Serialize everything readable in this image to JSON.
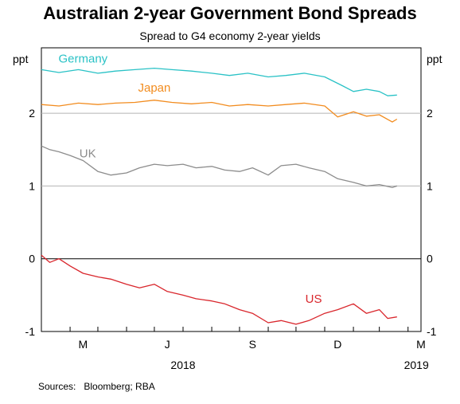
{
  "chart_data": {
    "type": "line",
    "title": "Australian 2-year Government Bond Spreads",
    "subtitle": "Spread to G4 economy 2-year yields",
    "yunit_left": "ppt",
    "yunit_right": "ppt",
    "ylim": [
      -1,
      2.9
    ],
    "yticks": [
      {
        "value": 2,
        "label": "2"
      },
      {
        "value": 1,
        "label": "1"
      },
      {
        "value": 0,
        "label": "0"
      },
      {
        "value": -1,
        "label": "-1"
      }
    ],
    "grid": true,
    "x_range": [
      "2018-03-01",
      "2019-04-15"
    ],
    "month_ticks": [
      "2018-04-01",
      "2018-05-01",
      "2018-06-01",
      "2018-07-01",
      "2018-08-01",
      "2018-09-01",
      "2018-10-01",
      "2018-11-01",
      "2018-12-01",
      "2019-01-01",
      "2019-02-01",
      "2019-03-01",
      "2019-04-01"
    ],
    "month_labels": [
      {
        "date": "2018-04-15",
        "label": "M"
      },
      {
        "date": "2018-07-15",
        "label": "J"
      },
      {
        "date": "2018-10-15",
        "label": "S"
      },
      {
        "date": "2019-01-15",
        "label": "D"
      },
      {
        "date": "2019-04-15",
        "label": "M"
      }
    ],
    "year_labels": [
      {
        "date": "2018-08-01",
        "label": "2018"
      },
      {
        "date": "2019-04-10",
        "label": "2019"
      }
    ],
    "series": [
      {
        "name": "Germany",
        "color": "#2ac2c6",
        "label_anchor": {
          "date": "2018-04-15",
          "value": 2.75
        },
        "data": [
          [
            "2018-03-01",
            2.6
          ],
          [
            "2018-03-20",
            2.56
          ],
          [
            "2018-04-10",
            2.6
          ],
          [
            "2018-05-01",
            2.55
          ],
          [
            "2018-05-20",
            2.58
          ],
          [
            "2018-06-10",
            2.6
          ],
          [
            "2018-07-01",
            2.62
          ],
          [
            "2018-07-20",
            2.6
          ],
          [
            "2018-08-10",
            2.58
          ],
          [
            "2018-09-01",
            2.55
          ],
          [
            "2018-09-20",
            2.52
          ],
          [
            "2018-10-10",
            2.55
          ],
          [
            "2018-11-01",
            2.5
          ],
          [
            "2018-11-20",
            2.52
          ],
          [
            "2018-12-10",
            2.55
          ],
          [
            "2019-01-01",
            2.5
          ],
          [
            "2019-01-20",
            2.38
          ],
          [
            "2019-02-01",
            2.3
          ],
          [
            "2019-02-15",
            2.33
          ],
          [
            "2019-03-01",
            2.3
          ],
          [
            "2019-03-10",
            2.24
          ],
          [
            "2019-03-20",
            2.25
          ]
        ]
      },
      {
        "name": "Japan",
        "color": "#f28c1f",
        "label_anchor": {
          "date": "2018-07-01",
          "value": 2.35
        },
        "data": [
          [
            "2018-03-01",
            2.12
          ],
          [
            "2018-03-20",
            2.1
          ],
          [
            "2018-04-10",
            2.14
          ],
          [
            "2018-05-01",
            2.12
          ],
          [
            "2018-05-20",
            2.14
          ],
          [
            "2018-06-10",
            2.15
          ],
          [
            "2018-07-01",
            2.18
          ],
          [
            "2018-07-20",
            2.15
          ],
          [
            "2018-08-10",
            2.13
          ],
          [
            "2018-09-01",
            2.15
          ],
          [
            "2018-09-20",
            2.1
          ],
          [
            "2018-10-10",
            2.12
          ],
          [
            "2018-11-01",
            2.1
          ],
          [
            "2018-11-20",
            2.12
          ],
          [
            "2018-12-10",
            2.14
          ],
          [
            "2019-01-01",
            2.1
          ],
          [
            "2019-01-15",
            1.95
          ],
          [
            "2019-02-01",
            2.02
          ],
          [
            "2019-02-15",
            1.96
          ],
          [
            "2019-03-01",
            1.98
          ],
          [
            "2019-03-15",
            1.88
          ],
          [
            "2019-03-20",
            1.92
          ]
        ]
      },
      {
        "name": "UK",
        "color": "#8c8c8c",
        "label_anchor": {
          "date": "2018-04-20",
          "value": 1.45
        },
        "data": [
          [
            "2018-03-01",
            1.55
          ],
          [
            "2018-03-10",
            1.5
          ],
          [
            "2018-03-20",
            1.47
          ],
          [
            "2018-04-01",
            1.42
          ],
          [
            "2018-04-15",
            1.35
          ],
          [
            "2018-05-01",
            1.2
          ],
          [
            "2018-05-15",
            1.15
          ],
          [
            "2018-06-01",
            1.18
          ],
          [
            "2018-06-15",
            1.25
          ],
          [
            "2018-07-01",
            1.3
          ],
          [
            "2018-07-15",
            1.28
          ],
          [
            "2018-08-01",
            1.3
          ],
          [
            "2018-08-15",
            1.25
          ],
          [
            "2018-09-01",
            1.27
          ],
          [
            "2018-09-15",
            1.22
          ],
          [
            "2018-10-01",
            1.2
          ],
          [
            "2018-10-15",
            1.25
          ],
          [
            "2018-11-01",
            1.15
          ],
          [
            "2018-11-15",
            1.28
          ],
          [
            "2018-12-01",
            1.3
          ],
          [
            "2018-12-15",
            1.25
          ],
          [
            "2019-01-01",
            1.2
          ],
          [
            "2019-01-15",
            1.1
          ],
          [
            "2019-02-01",
            1.05
          ],
          [
            "2019-02-15",
            1.0
          ],
          [
            "2019-03-01",
            1.02
          ],
          [
            "2019-03-15",
            0.98
          ],
          [
            "2019-03-20",
            1.0
          ]
        ]
      },
      {
        "name": "US",
        "color": "#d9262c",
        "label_anchor": {
          "date": "2018-12-20",
          "value": -0.55
        },
        "data": [
          [
            "2018-03-01",
            0.05
          ],
          [
            "2018-03-10",
            -0.05
          ],
          [
            "2018-03-20",
            0.0
          ],
          [
            "2018-04-01",
            -0.1
          ],
          [
            "2018-04-15",
            -0.2
          ],
          [
            "2018-05-01",
            -0.25
          ],
          [
            "2018-05-15",
            -0.28
          ],
          [
            "2018-06-01",
            -0.35
          ],
          [
            "2018-06-15",
            -0.4
          ],
          [
            "2018-07-01",
            -0.35
          ],
          [
            "2018-07-15",
            -0.45
          ],
          [
            "2018-08-01",
            -0.5
          ],
          [
            "2018-08-15",
            -0.55
          ],
          [
            "2018-09-01",
            -0.58
          ],
          [
            "2018-09-15",
            -0.62
          ],
          [
            "2018-10-01",
            -0.7
          ],
          [
            "2018-10-15",
            -0.75
          ],
          [
            "2018-11-01",
            -0.88
          ],
          [
            "2018-11-15",
            -0.85
          ],
          [
            "2018-12-01",
            -0.9
          ],
          [
            "2018-12-15",
            -0.85
          ],
          [
            "2019-01-01",
            -0.75
          ],
          [
            "2019-01-15",
            -0.7
          ],
          [
            "2019-02-01",
            -0.62
          ],
          [
            "2019-02-15",
            -0.75
          ],
          [
            "2019-03-01",
            -0.7
          ],
          [
            "2019-03-10",
            -0.82
          ],
          [
            "2019-03-20",
            -0.8
          ]
        ]
      }
    ]
  },
  "sources": "Sources:   Bloomberg; RBA"
}
